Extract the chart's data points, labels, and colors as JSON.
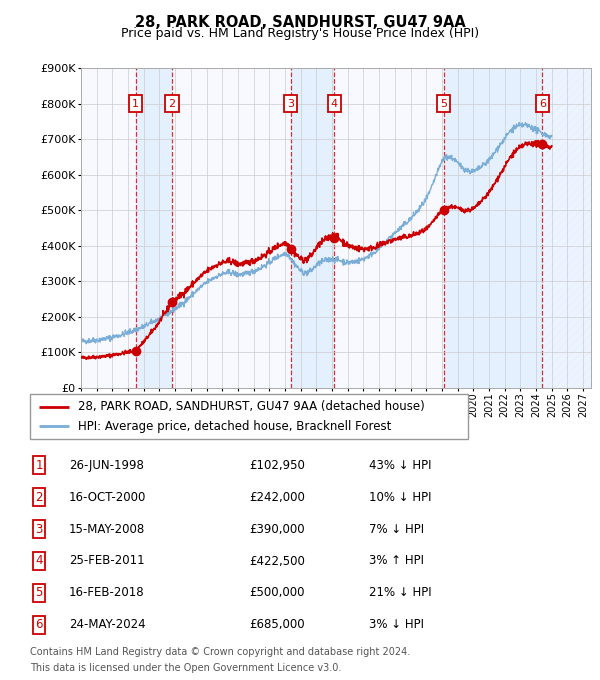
{
  "title": "28, PARK ROAD, SANDHURST, GU47 9AA",
  "subtitle": "Price paid vs. HM Land Registry's House Price Index (HPI)",
  "legend_line1": "28, PARK ROAD, SANDHURST, GU47 9AA (detached house)",
  "legend_line2": "HPI: Average price, detached house, Bracknell Forest",
  "footer1": "Contains HM Land Registry data © Crown copyright and database right 2024.",
  "footer2": "This data is licensed under the Open Government Licence v3.0.",
  "transactions": [
    {
      "num": 1,
      "date_label": "26-JUN-1998",
      "price": 102950,
      "pct": "43%",
      "dir": "↓",
      "year_x": 1998.486
    },
    {
      "num": 2,
      "date_label": "16-OCT-2000",
      "price": 242000,
      "pct": "10%",
      "dir": "↓",
      "year_x": 2000.789
    },
    {
      "num": 3,
      "date_label": "15-MAY-2008",
      "price": 390000,
      "pct": "7%",
      "dir": "↓",
      "year_x": 2008.37
    },
    {
      "num": 4,
      "date_label": "25-FEB-2011",
      "price": 422500,
      "pct": "3%",
      "dir": "↑",
      "year_x": 2011.149
    },
    {
      "num": 5,
      "date_label": "16-FEB-2018",
      "price": 500000,
      "pct": "21%",
      "dir": "↓",
      "year_x": 2018.123
    },
    {
      "num": 6,
      "date_label": "24-MAY-2024",
      "price": 685000,
      "pct": "3%",
      "dir": "↓",
      "year_x": 2024.397
    }
  ],
  "price_rows": [
    "£102,950",
    "£242,000",
    "£390,000",
    "£422,500",
    "£500,000",
    "£685,000"
  ],
  "pct_rows": [
    "43% ↓ HPI",
    "10% ↓ HPI",
    "7% ↓ HPI",
    "3% ↑ HPI",
    "21% ↓ HPI",
    "3% ↓ HPI"
  ],
  "ylim": [
    0,
    900000
  ],
  "xlim_start": 1995.0,
  "xlim_end": 2027.5,
  "yticks": [
    0,
    100000,
    200000,
    300000,
    400000,
    500000,
    600000,
    700000,
    800000,
    900000
  ],
  "ytick_labels": [
    "£0",
    "£100K",
    "£200K",
    "£300K",
    "£400K",
    "£500K",
    "£600K",
    "£700K",
    "£800K",
    "£900K"
  ],
  "xticks": [
    1995,
    1996,
    1997,
    1998,
    1999,
    2000,
    2001,
    2002,
    2003,
    2004,
    2005,
    2006,
    2007,
    2008,
    2009,
    2010,
    2011,
    2012,
    2013,
    2014,
    2015,
    2016,
    2017,
    2018,
    2019,
    2020,
    2021,
    2022,
    2023,
    2024,
    2025,
    2026,
    2027
  ],
  "price_line_color": "#cc0000",
  "hpi_line_color": "#7aaed6",
  "bg_color": "#ffffff",
  "grid_color": "#cccccc",
  "shade_color": "#ddeeff",
  "number_box_color": "#cc0000",
  "hpi_anchors": [
    [
      1995.0,
      130000
    ],
    [
      1995.5,
      132000
    ],
    [
      1996.0,
      134000
    ],
    [
      1996.5,
      137000
    ],
    [
      1997.0,
      142000
    ],
    [
      1997.5,
      148000
    ],
    [
      1998.0,
      155000
    ],
    [
      1998.5,
      163000
    ],
    [
      1999.0,
      172000
    ],
    [
      1999.5,
      183000
    ],
    [
      2000.0,
      195000
    ],
    [
      2000.5,
      208000
    ],
    [
      2001.0,
      222000
    ],
    [
      2001.5,
      238000
    ],
    [
      2002.0,
      258000
    ],
    [
      2002.5,
      278000
    ],
    [
      2003.0,
      296000
    ],
    [
      2003.5,
      310000
    ],
    [
      2004.0,
      320000
    ],
    [
      2004.5,
      325000
    ],
    [
      2005.0,
      318000
    ],
    [
      2005.5,
      320000
    ],
    [
      2006.0,
      328000
    ],
    [
      2006.5,
      338000
    ],
    [
      2007.0,
      352000
    ],
    [
      2007.5,
      368000
    ],
    [
      2008.0,
      378000
    ],
    [
      2008.2,
      375000
    ],
    [
      2008.5,
      355000
    ],
    [
      2009.0,
      328000
    ],
    [
      2009.3,
      322000
    ],
    [
      2009.7,
      330000
    ],
    [
      2010.0,
      345000
    ],
    [
      2010.5,
      358000
    ],
    [
      2011.0,
      362000
    ],
    [
      2011.5,
      358000
    ],
    [
      2012.0,
      352000
    ],
    [
      2012.5,
      355000
    ],
    [
      2013.0,
      362000
    ],
    [
      2013.5,
      375000
    ],
    [
      2014.0,
      392000
    ],
    [
      2014.5,
      415000
    ],
    [
      2015.0,
      435000
    ],
    [
      2015.5,
      455000
    ],
    [
      2016.0,
      475000
    ],
    [
      2016.5,
      500000
    ],
    [
      2017.0,
      530000
    ],
    [
      2017.3,
      558000
    ],
    [
      2017.6,
      595000
    ],
    [
      2017.9,
      625000
    ],
    [
      2018.0,
      638000
    ],
    [
      2018.2,
      648000
    ],
    [
      2018.5,
      650000
    ],
    [
      2018.8,
      642000
    ],
    [
      2019.0,
      632000
    ],
    [
      2019.3,
      620000
    ],
    [
      2019.6,
      612000
    ],
    [
      2020.0,
      608000
    ],
    [
      2020.3,
      615000
    ],
    [
      2020.6,
      625000
    ],
    [
      2021.0,
      640000
    ],
    [
      2021.3,
      658000
    ],
    [
      2021.6,
      678000
    ],
    [
      2022.0,
      700000
    ],
    [
      2022.3,
      720000
    ],
    [
      2022.6,
      732000
    ],
    [
      2023.0,
      738000
    ],
    [
      2023.3,
      740000
    ],
    [
      2023.6,
      735000
    ],
    [
      2024.0,
      725000
    ],
    [
      2024.3,
      718000
    ],
    [
      2024.6,
      712000
    ],
    [
      2025.0,
      705000
    ]
  ]
}
